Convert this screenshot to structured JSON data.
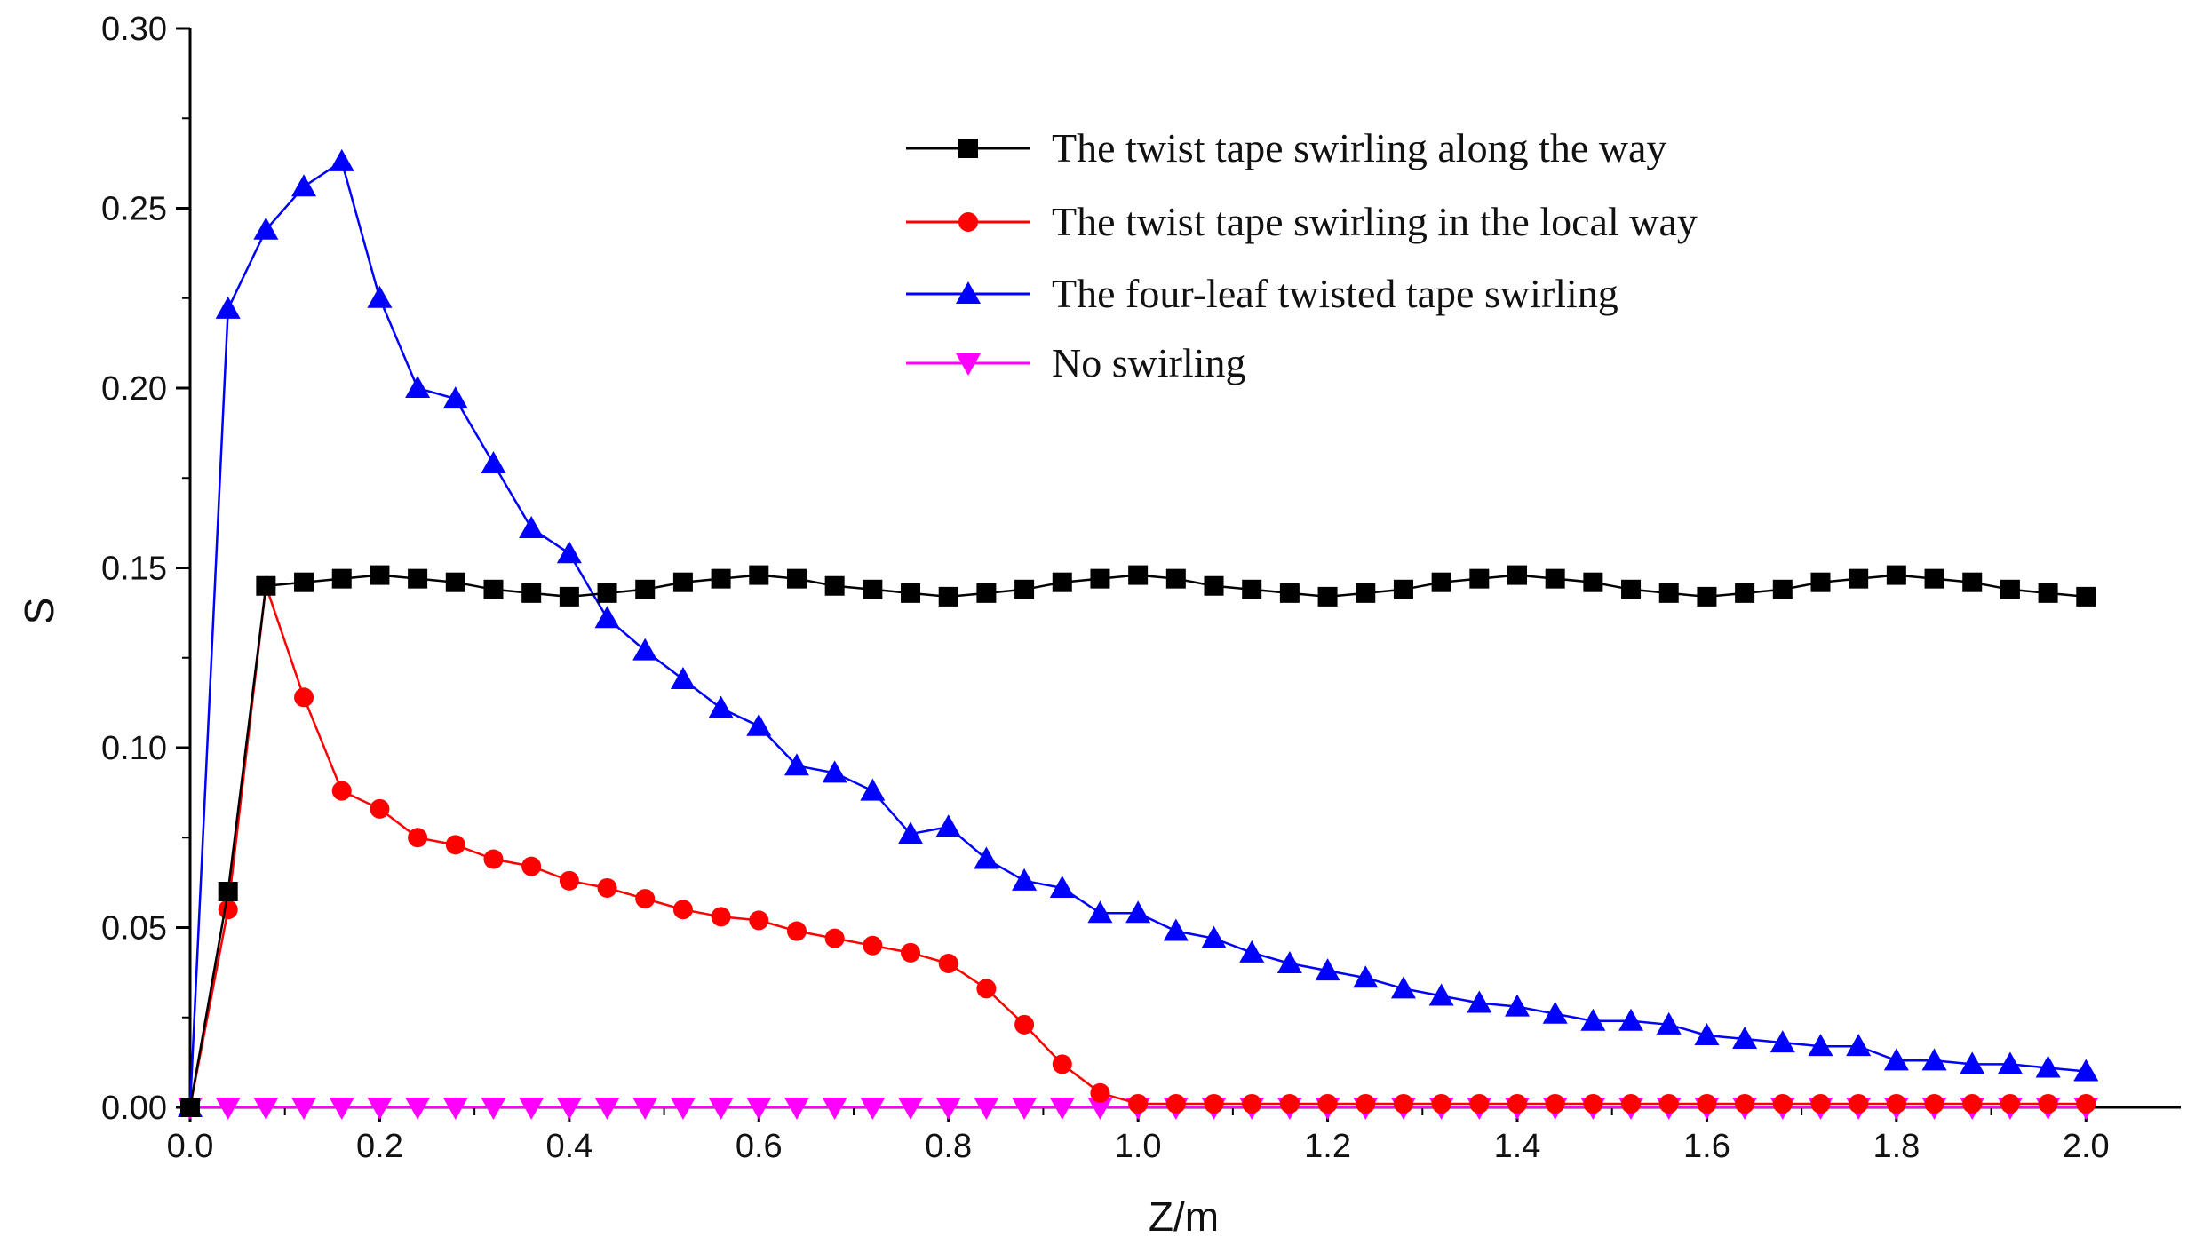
{
  "chart_data": {
    "type": "line",
    "title": "",
    "xlabel": "Z/m",
    "ylabel": "S",
    "xlim": [
      0,
      2.1
    ],
    "ylim": [
      0,
      0.3
    ],
    "xticks": [
      "0.0",
      "0.2",
      "0.4",
      "0.6",
      "0.8",
      "1.0",
      "1.2",
      "1.4",
      "1.6",
      "1.8",
      "2.0"
    ],
    "yticks": [
      "0.00",
      "0.05",
      "0.10",
      "0.15",
      "0.20",
      "0.25",
      "0.30"
    ],
    "grid": false,
    "legend_position": "top-right",
    "series": [
      {
        "name": "The twist tape swirling along the way",
        "color": "#000000",
        "marker": "square",
        "x": [
          0,
          0.04,
          0.08,
          0.12,
          0.16,
          0.2,
          0.24,
          0.28,
          0.32,
          0.36,
          0.4,
          0.44,
          0.48,
          0.52,
          0.56,
          0.6,
          0.64,
          0.68,
          0.72,
          0.76,
          0.8,
          0.84,
          0.88,
          0.92,
          0.96,
          1.0,
          1.04,
          1.08,
          1.12,
          1.16,
          1.2,
          1.24,
          1.28,
          1.32,
          1.36,
          1.4,
          1.44,
          1.48,
          1.52,
          1.56,
          1.6,
          1.64,
          1.68,
          1.72,
          1.76,
          1.8,
          1.84,
          1.88,
          1.92,
          1.96,
          2.0
        ],
        "y": [
          0,
          0.06,
          0.145,
          0.146,
          0.147,
          0.148,
          0.147,
          0.146,
          0.144,
          0.143,
          0.142,
          0.143,
          0.144,
          0.146,
          0.147,
          0.148,
          0.147,
          0.145,
          0.144,
          0.143,
          0.142,
          0.143,
          0.144,
          0.146,
          0.147,
          0.148,
          0.147,
          0.145,
          0.144,
          0.143,
          0.142,
          0.143,
          0.144,
          0.146,
          0.147,
          0.148,
          0.147,
          0.146,
          0.144,
          0.143,
          0.142,
          0.143,
          0.144,
          0.146,
          0.147,
          0.148,
          0.147,
          0.146,
          0.144,
          0.143,
          0.142
        ]
      },
      {
        "name": "The twist tape swirling in the local way",
        "color": "#ff0000",
        "marker": "circle",
        "x": [
          0,
          0.04,
          0.08,
          0.12,
          0.16,
          0.2,
          0.24,
          0.28,
          0.32,
          0.36,
          0.4,
          0.44,
          0.48,
          0.52,
          0.56,
          0.6,
          0.64,
          0.68,
          0.72,
          0.76,
          0.8,
          0.84,
          0.88,
          0.92,
          0.96,
          1.0,
          1.04,
          1.08,
          1.12,
          1.16,
          1.2,
          1.24,
          1.28,
          1.32,
          1.36,
          1.4,
          1.44,
          1.48,
          1.52,
          1.56,
          1.6,
          1.64,
          1.68,
          1.72,
          1.76,
          1.8,
          1.84,
          1.88,
          1.92,
          1.96,
          2.0
        ],
        "y": [
          0,
          0.055,
          0.145,
          0.114,
          0.088,
          0.083,
          0.075,
          0.073,
          0.069,
          0.067,
          0.063,
          0.061,
          0.058,
          0.055,
          0.053,
          0.052,
          0.049,
          0.047,
          0.045,
          0.043,
          0.04,
          0.033,
          0.023,
          0.012,
          0.004,
          0.001,
          0.001,
          0.001,
          0.001,
          0.001,
          0.001,
          0.001,
          0.001,
          0.001,
          0.001,
          0.001,
          0.001,
          0.001,
          0.001,
          0.001,
          0.001,
          0.001,
          0.001,
          0.001,
          0.001,
          0.001,
          0.001,
          0.001,
          0.001,
          0.001,
          0.001
        ]
      },
      {
        "name": "The four-leaf twisted tape swirling",
        "color": "#0000ff",
        "marker": "triangle-up",
        "x": [
          0,
          0.04,
          0.08,
          0.12,
          0.16,
          0.2,
          0.24,
          0.28,
          0.32,
          0.36,
          0.4,
          0.44,
          0.48,
          0.52,
          0.56,
          0.6,
          0.64,
          0.68,
          0.72,
          0.76,
          0.8,
          0.84,
          0.88,
          0.92,
          0.96,
          1.0,
          1.04,
          1.08,
          1.12,
          1.16,
          1.2,
          1.24,
          1.28,
          1.32,
          1.36,
          1.4,
          1.44,
          1.48,
          1.52,
          1.56,
          1.6,
          1.64,
          1.68,
          1.72,
          1.76,
          1.8,
          1.84,
          1.88,
          1.92,
          1.96,
          2.0
        ],
        "y": [
          0,
          0.222,
          0.244,
          0.256,
          0.263,
          0.225,
          0.2,
          0.197,
          0.179,
          0.161,
          0.154,
          0.136,
          0.127,
          0.119,
          0.111,
          0.106,
          0.095,
          0.093,
          0.088,
          0.076,
          0.078,
          0.069,
          0.063,
          0.061,
          0.054,
          0.054,
          0.049,
          0.047,
          0.043,
          0.04,
          0.038,
          0.036,
          0.033,
          0.031,
          0.029,
          0.028,
          0.026,
          0.024,
          0.024,
          0.023,
          0.02,
          0.019,
          0.018,
          0.017,
          0.017,
          0.013,
          0.013,
          0.012,
          0.012,
          0.011,
          0.01
        ]
      },
      {
        "name": "No swirling",
        "color": "#ff00ff",
        "marker": "triangle-down",
        "x": [
          0,
          0.04,
          0.08,
          0.12,
          0.16,
          0.2,
          0.24,
          0.28,
          0.32,
          0.36,
          0.4,
          0.44,
          0.48,
          0.52,
          0.56,
          0.6,
          0.64,
          0.68,
          0.72,
          0.76,
          0.8,
          0.84,
          0.88,
          0.92,
          0.96,
          1.0,
          1.04,
          1.08,
          1.12,
          1.16,
          1.2,
          1.24,
          1.28,
          1.32,
          1.36,
          1.4,
          1.44,
          1.48,
          1.52,
          1.56,
          1.6,
          1.64,
          1.68,
          1.72,
          1.76,
          1.8,
          1.84,
          1.88,
          1.92,
          1.96,
          2.0
        ],
        "y": [
          0,
          0,
          0,
          0,
          0,
          0,
          0,
          0,
          0,
          0,
          0,
          0,
          0,
          0,
          0,
          0,
          0,
          0,
          0,
          0,
          0,
          0,
          0,
          0,
          0,
          0,
          0,
          0,
          0,
          0,
          0,
          0,
          0,
          0,
          0,
          0,
          0,
          0,
          0,
          0,
          0,
          0,
          0,
          0,
          0,
          0,
          0,
          0,
          0,
          0,
          0
        ]
      }
    ]
  }
}
